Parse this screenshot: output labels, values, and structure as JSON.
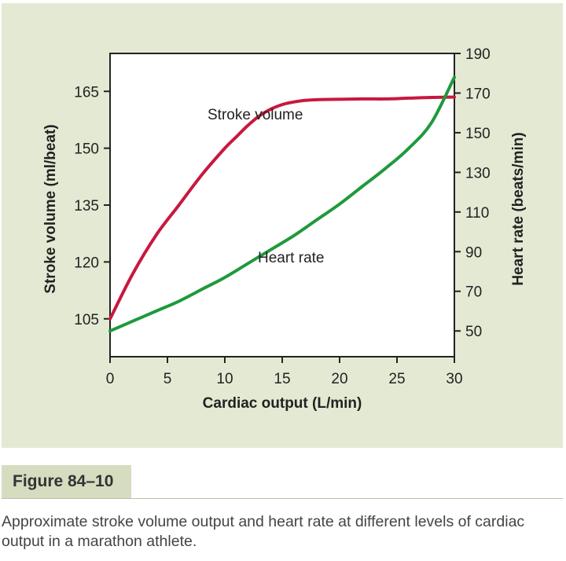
{
  "chart_data": {
    "type": "line",
    "title": "",
    "xlabel": "Cardiac output (L/min)",
    "ylabel_left": "Stroke volume (ml/beat)",
    "ylabel_right": "Heart rate (beats/min)",
    "xlim": [
      0,
      30
    ],
    "x_ticks": [
      0,
      5,
      10,
      15,
      20,
      25,
      30
    ],
    "ylim_left": [
      95,
      175
    ],
    "y_ticks_left": [
      105,
      120,
      135,
      150,
      165
    ],
    "ylim_right": [
      37,
      190
    ],
    "y_ticks_right": [
      50,
      70,
      90,
      110,
      130,
      150,
      170,
      190
    ],
    "grid": false,
    "series": [
      {
        "name": "Stroke volume",
        "axis": "left",
        "color": "#c8183e",
        "x": [
          0,
          2,
          4,
          6,
          8,
          10,
          11,
          12,
          13,
          14,
          15,
          16,
          17,
          18,
          20,
          22,
          24,
          26,
          28,
          30
        ],
        "y": [
          105,
          117,
          127,
          135,
          143,
          150,
          153,
          156,
          158.5,
          160.3,
          161.5,
          162.2,
          162.6,
          162.8,
          162.9,
          163,
          163,
          163.2,
          163.4,
          163.5
        ]
      },
      {
        "name": "Heart rate",
        "axis": "right",
        "color": "#1e9a3c",
        "x": [
          0,
          2,
          4,
          6,
          8,
          10,
          12,
          14,
          16,
          18,
          20,
          22,
          24,
          26,
          28,
          30
        ],
        "y": [
          50,
          55,
          60,
          65,
          71,
          77,
          84,
          91,
          98,
          106,
          114,
          123,
          132,
          142,
          155,
          178
        ]
      }
    ]
  },
  "figure": {
    "label": "Figure 84–10",
    "caption": "Approximate stroke volume output and heart rate at different levels of cardiac output in a marathon athlete."
  }
}
